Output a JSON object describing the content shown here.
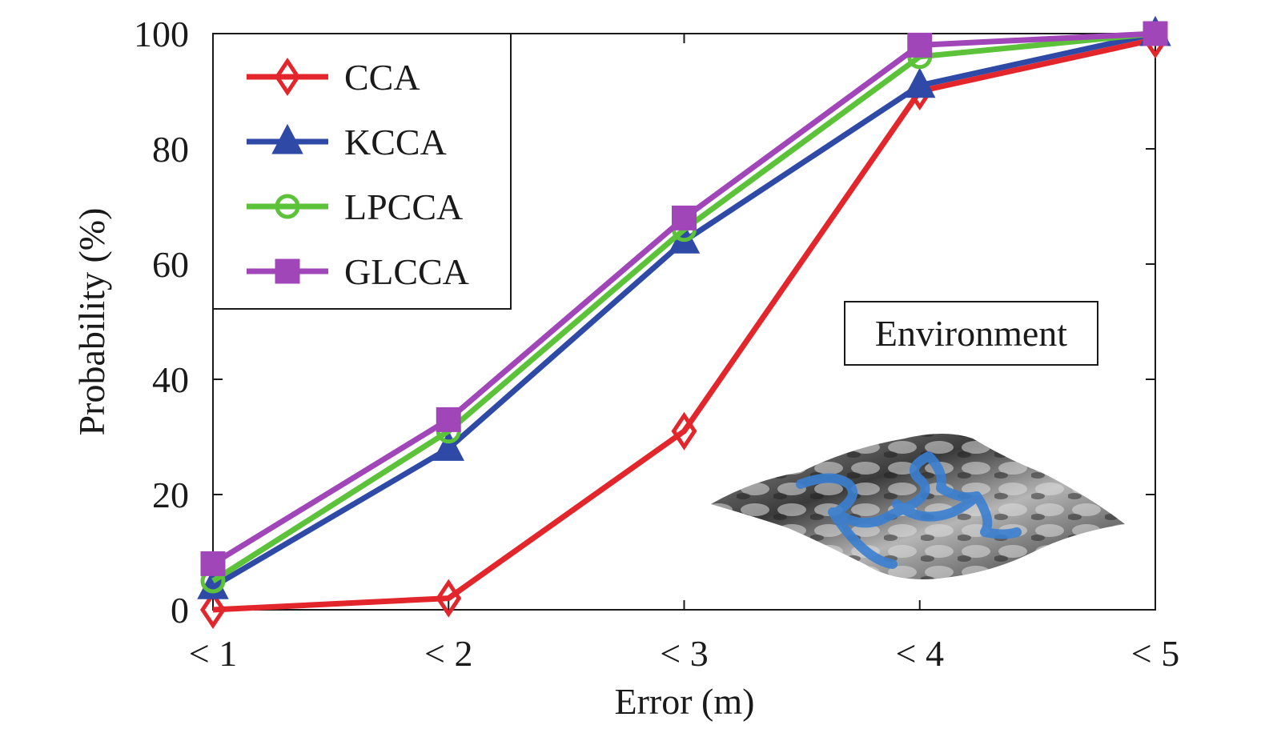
{
  "chart_data": {
    "type": "line",
    "categories": [
      "< 1",
      "< 2",
      "< 3",
      "< 4",
      "< 5"
    ],
    "xlabel": "Error (m)",
    "ylabel": "Probability (%)",
    "ylim": [
      0,
      100
    ],
    "yticks": [
      "0",
      "20",
      "40",
      "60",
      "80",
      "100"
    ],
    "grid": false,
    "legend_position": "top-left",
    "annotation": "Environment",
    "series": [
      {
        "name": "CCA",
        "color": "#e3262b",
        "marker": "diamond",
        "values": [
          0,
          2,
          31,
          90,
          99
        ]
      },
      {
        "name": "KCCA",
        "color": "#2e4aa6",
        "marker": "triangle",
        "values": [
          4,
          28,
          64,
          91,
          100
        ]
      },
      {
        "name": "LPCCA",
        "color": "#5cc23a",
        "marker": "circle",
        "values": [
          5,
          31,
          66,
          96,
          100
        ]
      },
      {
        "name": "GLCCA",
        "color": "#a046b8",
        "marker": "square",
        "values": [
          8,
          33,
          68,
          98,
          100
        ]
      }
    ]
  }
}
